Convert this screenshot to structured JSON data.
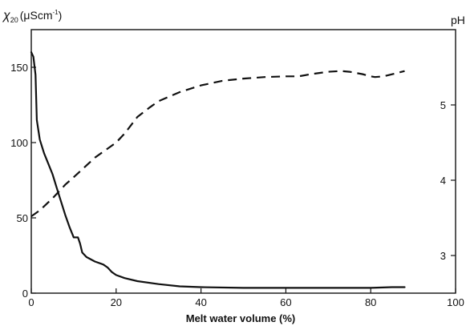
{
  "chart_data": {
    "type": "line",
    "xlabel": "Melt water volume (%)",
    "ylabel_left": "χ20 (μScm⁻¹)",
    "ylabel_left_main": "χ",
    "ylabel_left_sub": "20",
    "ylabel_left_unit": "(μScm",
    "ylabel_left_sup": "-1",
    "ylabel_left_close": ")",
    "ylabel_right": "pH",
    "xlim": [
      0,
      100
    ],
    "ylim_left": [
      0,
      175
    ],
    "ylim_right": [
      2.5,
      6.0
    ],
    "x_ticks": [
      "0",
      "20",
      "40",
      "60",
      "80",
      "100"
    ],
    "y_left_ticks": [
      "0",
      "50",
      "100",
      "150"
    ],
    "y_right_ticks": [
      "3",
      "4",
      "5"
    ],
    "grid": false,
    "legend": "none",
    "line_color": "#111111",
    "series": [
      {
        "axis": "left",
        "style": "solid",
        "x": [
          0.0,
          0.5,
          1.0,
          1.3,
          2.0,
          3.0,
          4.0,
          5.0,
          6.0,
          7.0,
          8.0,
          9.0,
          10.0,
          11.0,
          11.5,
          12.0,
          13.0,
          15.0,
          17.0,
          18.0,
          19.0,
          20.0,
          22.0,
          25.0,
          30.0,
          35.0,
          40.0,
          50.0,
          60.0,
          70.0,
          80.0,
          85.0,
          88.0
        ],
        "y": [
          160,
          157,
          145,
          115,
          102,
          93,
          86,
          79,
          70,
          61,
          52,
          44,
          37,
          37,
          33,
          27,
          24,
          21,
          19,
          17,
          14,
          12,
          10,
          8,
          6,
          4.5,
          4,
          3.5,
          3.5,
          3.5,
          3.5,
          4,
          4
        ]
      },
      {
        "axis": "right",
        "style": "dashed",
        "x": [
          0,
          2,
          5,
          8,
          10,
          15,
          20,
          22,
          25,
          28,
          30,
          35,
          40,
          45,
          50,
          55,
          60,
          63,
          66,
          70,
          73,
          75,
          78,
          80,
          81,
          83,
          86,
          88
        ],
        "y": [
          3.52,
          3.6,
          3.76,
          3.94,
          4.04,
          4.3,
          4.5,
          4.62,
          4.84,
          4.97,
          5.05,
          5.17,
          5.26,
          5.32,
          5.35,
          5.37,
          5.38,
          5.38,
          5.41,
          5.44,
          5.45,
          5.44,
          5.41,
          5.38,
          5.37,
          5.38,
          5.42,
          5.45
        ]
      }
    ]
  }
}
